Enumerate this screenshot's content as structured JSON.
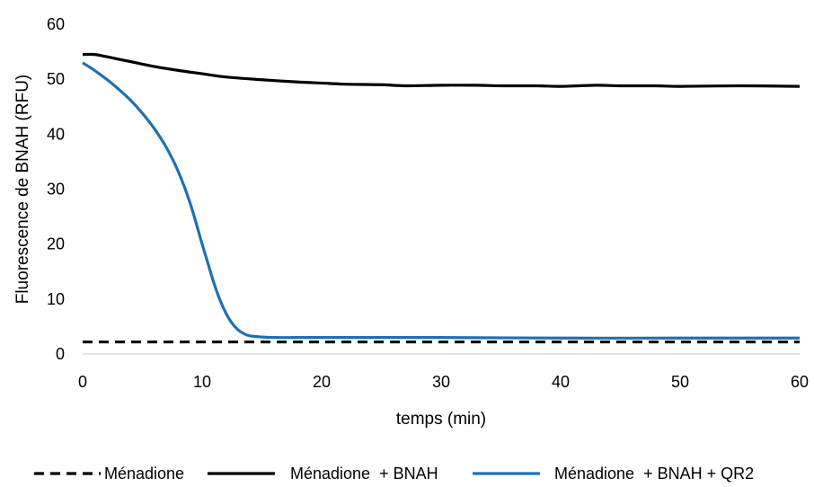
{
  "chart_data": {
    "type": "line",
    "xlabel": "temps (min)",
    "ylabel": "Fluorescence de BNAH (RFU)",
    "xlim": [
      0,
      60
    ],
    "ylim": [
      0,
      60
    ],
    "xticks": [
      0,
      10,
      20,
      30,
      40,
      50,
      60
    ],
    "yticks": [
      0,
      10,
      20,
      30,
      40,
      50,
      60
    ],
    "grid": false,
    "legend_position": "bottom",
    "series": [
      {
        "name": "Ménadione",
        "color": "#000000",
        "style": "dashed",
        "x": [
          0,
          10,
          20,
          30,
          40,
          50,
          60
        ],
        "y": [
          2.2,
          2.2,
          2.2,
          2.2,
          2.2,
          2.2,
          2.2
        ]
      },
      {
        "name": "Ménadione  + BNAH",
        "color": "#000000",
        "style": "solid",
        "x": [
          0,
          1,
          2,
          4,
          6,
          8,
          10,
          12,
          15,
          18,
          20,
          22,
          25,
          27,
          30,
          33,
          35,
          38,
          40,
          43,
          45,
          48,
          50,
          55,
          60
        ],
        "y": [
          54.5,
          54.5,
          54.1,
          53.2,
          52.3,
          51.6,
          51.0,
          50.4,
          49.9,
          49.5,
          49.3,
          49.1,
          49.0,
          48.8,
          48.9,
          48.9,
          48.8,
          48.8,
          48.7,
          48.9,
          48.8,
          48.8,
          48.7,
          48.8,
          48.7
        ]
      },
      {
        "name": "Ménadione  + BNAH + QR2",
        "color": "#1F6FB5",
        "style": "solid",
        "x": [
          0,
          1,
          2,
          3,
          4,
          5,
          6,
          7,
          8,
          9,
          10,
          10.5,
          11,
          11.5,
          12,
          12.5,
          13,
          13.5,
          14,
          15,
          16,
          18,
          20,
          25,
          30,
          40,
          50,
          60
        ],
        "y": [
          53.0,
          51.6,
          50.0,
          48.2,
          46.2,
          43.8,
          41.0,
          37.6,
          33.2,
          27.4,
          20.0,
          16.4,
          12.8,
          9.8,
          7.4,
          5.6,
          4.4,
          3.7,
          3.3,
          3.1,
          3.0,
          3.0,
          3.0,
          3.0,
          3.0,
          2.9,
          2.9,
          2.9
        ]
      }
    ]
  }
}
